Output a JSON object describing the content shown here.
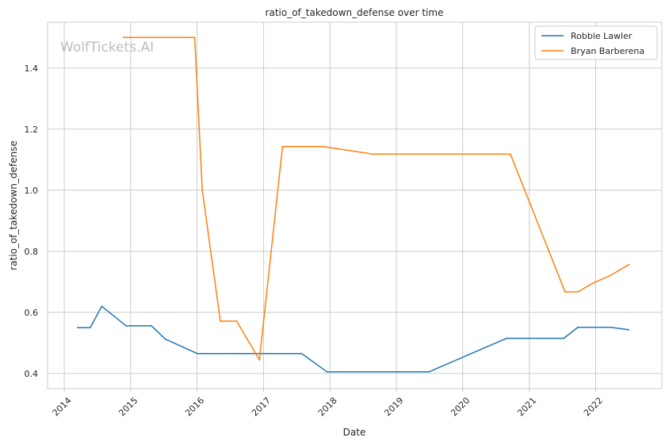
{
  "chart_data": {
    "type": "line",
    "title": "ratio_of_takedown_defense over time",
    "xlabel": "Date",
    "ylabel": "ratio_of_takedown_defense",
    "watermark": "WolfTickets.AI",
    "x_ticks": [
      "2014",
      "2015",
      "2016",
      "2017",
      "2018",
      "2019",
      "2020",
      "2021",
      "2022"
    ],
    "y_ticks": [
      "0.4",
      "0.6",
      "0.8",
      "1.0",
      "1.2",
      "1.4"
    ],
    "xlim": [
      "2013-10-01",
      "2022-12-31"
    ],
    "ylim": [
      0.35,
      1.55
    ],
    "grid": true,
    "legend_position": "top-right",
    "series": [
      {
        "name": "Robbie Lawler",
        "color": "#1f77b4",
        "points": [
          [
            "2014-03-15",
            0.55
          ],
          [
            "2014-05-24",
            0.55
          ],
          [
            "2014-07-26",
            0.62
          ],
          [
            "2014-12-06",
            0.556
          ],
          [
            "2015-04-25",
            0.556
          ],
          [
            "2015-07-11",
            0.512
          ],
          [
            "2016-01-02",
            0.465
          ],
          [
            "2016-07-30",
            0.465
          ],
          [
            "2017-01-28",
            0.465
          ],
          [
            "2017-07-29",
            0.465
          ],
          [
            "2017-12-16",
            0.405
          ],
          [
            "2018-08-25",
            0.405
          ],
          [
            "2019-01-19",
            0.405
          ],
          [
            "2019-06-29",
            0.405
          ],
          [
            "2020-08-29",
            0.515
          ],
          [
            "2021-07-10",
            0.515
          ],
          [
            "2021-09-25",
            0.551
          ],
          [
            "2022-03-26",
            0.551
          ],
          [
            "2022-07-02",
            0.543
          ]
        ]
      },
      {
        "name": "Bryan Barberena",
        "color": "#ff7f0e",
        "points": [
          [
            "2014-11-22",
            1.5
          ],
          [
            "2015-12-19",
            1.5
          ],
          [
            "2016-01-30",
            1.0
          ],
          [
            "2016-05-08",
            0.571
          ],
          [
            "2016-08-06",
            0.571
          ],
          [
            "2016-12-09",
            0.444
          ],
          [
            "2017-04-15",
            1.143
          ],
          [
            "2017-11-25",
            1.143
          ],
          [
            "2018-08-25",
            1.118
          ],
          [
            "2020-09-19",
            1.118
          ],
          [
            "2021-07-17",
            0.667
          ],
          [
            "2021-09-25",
            0.667
          ],
          [
            "2021-12-18",
            0.696
          ],
          [
            "2022-03-19",
            0.72
          ],
          [
            "2022-07-02",
            0.756
          ]
        ]
      }
    ]
  }
}
